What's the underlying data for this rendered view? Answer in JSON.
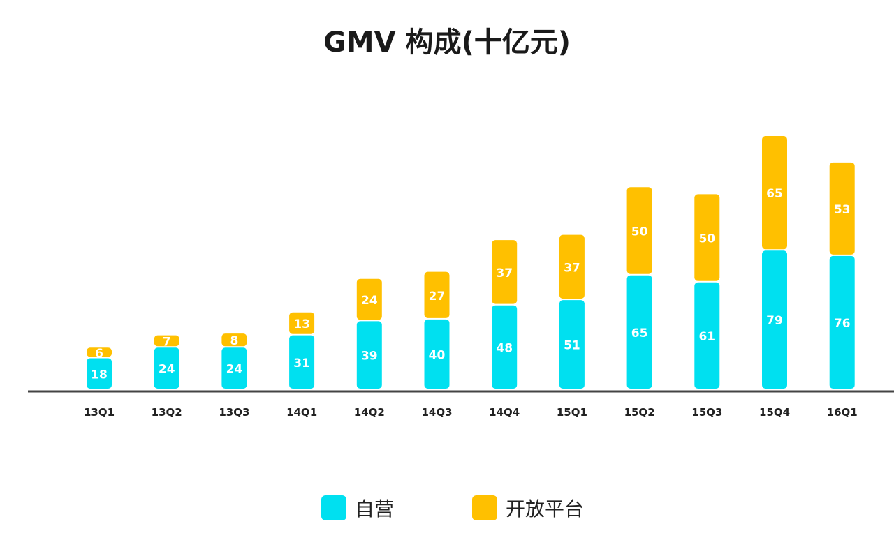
{
  "chart_data": {
    "type": "bar",
    "stacked": true,
    "title": "GMV 构成(十亿元)",
    "categories": [
      "13Q1",
      "13Q2",
      "13Q3",
      "14Q1",
      "14Q2",
      "14Q3",
      "14Q4",
      "15Q1",
      "15Q2",
      "15Q3",
      "15Q4",
      "16Q1"
    ],
    "series": [
      {
        "name": "自营",
        "color": "#00e0f0",
        "values": [
          18,
          24,
          24,
          31,
          39,
          40,
          48,
          51,
          65,
          61,
          79,
          76
        ]
      },
      {
        "name": "开放平台",
        "color": "#ffc000",
        "values": [
          6,
          7,
          8,
          13,
          24,
          27,
          37,
          37,
          50,
          50,
          65,
          53
        ]
      }
    ],
    "xlabel": "",
    "ylabel": "",
    "ylim": [
      0,
      144
    ],
    "grid": false,
    "legend_position": "bottom"
  }
}
